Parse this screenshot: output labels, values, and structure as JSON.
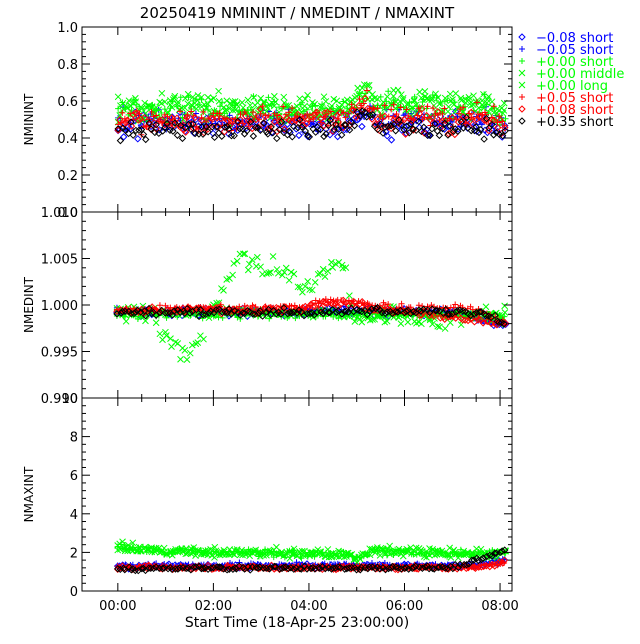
{
  "title": "20250419 NMININT / NMEDINT / NMAXINT",
  "colors": {
    "frame": "#000000",
    "black": "#000000",
    "blue": "#0000ff",
    "green": "#00ff00",
    "red": "#ff0000"
  },
  "legend": [
    {
      "symbol": "diamond",
      "color": "#0000ff",
      "text": "−0.08 short"
    },
    {
      "symbol": "plus",
      "color": "#0000ff",
      "text": "−0.05 short"
    },
    {
      "symbol": "plus",
      "color": "#00ff00",
      "text": "+0.00 short"
    },
    {
      "symbol": "cross",
      "color": "#00ff00",
      "text": "+0.00 middle"
    },
    {
      "symbol": "cross",
      "color": "#00ff00",
      "text": "+0.00 long"
    },
    {
      "symbol": "plus",
      "color": "#ff0000",
      "text": "+0.05 short"
    },
    {
      "symbol": "diamond",
      "color": "#ff0000",
      "text": "+0.08 short"
    },
    {
      "symbol": "diamond",
      "color": "#000000",
      "text": "+0.35 short"
    }
  ],
  "chart_data": [
    {
      "type": "scatter",
      "ylabel": "NMININT",
      "ylim": [
        0.0,
        1.0
      ],
      "yticks": [
        "0.0",
        "0.2",
        "0.4",
        "0.6",
        "0.8",
        "1.0"
      ],
      "xlim": [
        -0.75,
        8.25
      ],
      "series": [
        {
          "name": "−0.08 short",
          "symbol": "diamond",
          "color": "#0000ff",
          "profile": [
            [
              0,
              0.47
            ],
            [
              4.8,
              0.47
            ],
            [
              5.2,
              0.55
            ],
            [
              5.4,
              0.47
            ],
            [
              7.8,
              0.48
            ],
            [
              8.1,
              0.44
            ]
          ],
          "jitter": 0.03
        },
        {
          "name": "−0.05 short",
          "symbol": "plus",
          "color": "#0000ff",
          "profile": [
            [
              0,
              0.49
            ],
            [
              4.8,
              0.5
            ],
            [
              5.2,
              0.58
            ],
            [
              5.4,
              0.5
            ],
            [
              7.8,
              0.5
            ],
            [
              8.1,
              0.46
            ]
          ],
          "jitter": 0.03
        },
        {
          "name": "+0.00 short",
          "symbol": "plus",
          "color": "#00ff00",
          "profile": [
            [
              0,
              0.55
            ],
            [
              4.8,
              0.56
            ],
            [
              5.2,
              0.65
            ],
            [
              5.4,
              0.57
            ],
            [
              7.8,
              0.57
            ],
            [
              8.0,
              0.48
            ],
            [
              8.1,
              0.5
            ]
          ],
          "jitter": 0.035
        },
        {
          "name": "+0.00 middle",
          "symbol": "cross",
          "color": "#00ff00",
          "profile": [
            [
              0,
              0.56
            ],
            [
              4.8,
              0.56
            ],
            [
              5.2,
              0.67
            ],
            [
              5.4,
              0.58
            ],
            [
              7.8,
              0.58
            ],
            [
              8.1,
              0.52
            ]
          ],
          "jitter": 0.035
        },
        {
          "name": "+0.00 long",
          "symbol": "cross",
          "color": "#00ff00",
          "profile": [
            [
              0,
              0.57
            ],
            [
              4.8,
              0.57
            ],
            [
              5.2,
              0.68
            ],
            [
              5.4,
              0.6
            ],
            [
              7.8,
              0.6
            ],
            [
              8.1,
              0.54
            ]
          ],
          "jitter": 0.035
        },
        {
          "name": "+0.05 short",
          "symbol": "plus",
          "color": "#ff0000",
          "profile": [
            [
              0,
              0.5
            ],
            [
              4.8,
              0.51
            ],
            [
              5.2,
              0.6
            ],
            [
              5.4,
              0.52
            ],
            [
              7.8,
              0.52
            ],
            [
              8.1,
              0.47
            ]
          ],
          "jitter": 0.03
        },
        {
          "name": "+0.08 short",
          "symbol": "diamond",
          "color": "#ff0000",
          "profile": [
            [
              0,
              0.48
            ],
            [
              4.8,
              0.49
            ],
            [
              5.2,
              0.58
            ],
            [
              5.4,
              0.49
            ],
            [
              7.8,
              0.49
            ],
            [
              8.1,
              0.44
            ]
          ],
          "jitter": 0.03
        },
        {
          "name": "+0.35 short",
          "symbol": "diamond",
          "color": "#000000",
          "profile": [
            [
              0,
              0.44
            ],
            [
              4.8,
              0.45
            ],
            [
              5.2,
              0.53
            ],
            [
              5.4,
              0.46
            ],
            [
              7.8,
              0.45
            ],
            [
              8.1,
              0.41
            ]
          ],
          "jitter": 0.025
        }
      ]
    },
    {
      "type": "scatter",
      "ylabel": "NMEDINT",
      "ylim": [
        0.99,
        1.01
      ],
      "yticks": [
        "0.990",
        "0.995",
        "1.000",
        "1.005",
        "1.010"
      ],
      "xlim": [
        -0.75,
        8.25
      ],
      "series": [
        {
          "name": "−0.08 short",
          "symbol": "diamond",
          "color": "#0000ff",
          "profile": [
            [
              0,
              0.9992
            ],
            [
              5,
              0.9993
            ],
            [
              7,
              0.9992
            ],
            [
              8.1,
              0.9978
            ]
          ],
          "jitter": 0.0002
        },
        {
          "name": "−0.05 short",
          "symbol": "plus",
          "color": "#0000ff",
          "profile": [
            [
              0,
              0.9994
            ],
            [
              5,
              0.9994
            ],
            [
              7,
              0.9993
            ],
            [
              8.1,
              0.998
            ]
          ],
          "jitter": 0.0002
        },
        {
          "name": "+0.00 short",
          "symbol": "plus",
          "color": "#00ff00",
          "profile": [
            [
              0,
              0.999
            ],
            [
              8.1,
              0.9988
            ]
          ],
          "jitter": 0.0002
        },
        {
          "name": "+0.00 middle",
          "symbol": "cross",
          "color": "#00ff00",
          "profile": [
            [
              0,
              0.9992
            ],
            [
              0.8,
              0.9985
            ],
            [
              1.0,
              0.997
            ],
            [
              1.3,
              0.995
            ],
            [
              1.5,
              0.9948
            ],
            [
              1.8,
              0.997
            ],
            [
              2.0,
              0.9995
            ],
            [
              2.2,
              1.002
            ],
            [
              2.5,
              1.0045
            ],
            [
              3.0,
              1.005
            ],
            [
              3.3,
              1.004
            ],
            [
              3.6,
              1.0035
            ],
            [
              3.9,
              1.0015
            ],
            [
              4.2,
              1.003
            ],
            [
              4.5,
              1.0048
            ],
            [
              4.8,
              1.0035
            ],
            [
              4.9,
              0.998
            ],
            [
              5.2,
              0.9988
            ],
            [
              8.1,
              0.9985
            ]
          ],
          "jitter": 0.0006
        },
        {
          "name": "+0.00 long",
          "symbol": "cross",
          "color": "#00ff00",
          "profile": [
            [
              0,
              0.9992
            ],
            [
              8.1,
              0.999
            ]
          ],
          "jitter": 0.0002
        },
        {
          "name": "+0.05 short",
          "symbol": "plus",
          "color": "#ff0000",
          "profile": [
            [
              0,
              0.9995
            ],
            [
              3.8,
              0.9997
            ],
            [
              4.5,
              1.0005
            ],
            [
              5.0,
              1.0002
            ],
            [
              5.4,
              0.9998
            ],
            [
              7.5,
              0.9997
            ],
            [
              8.1,
              0.998
            ]
          ],
          "jitter": 0.0002
        },
        {
          "name": "+0.08 short",
          "symbol": "diamond",
          "color": "#ff0000",
          "profile": [
            [
              0,
              0.9994
            ],
            [
              3.8,
              0.9995
            ],
            [
              4.5,
              1.0002
            ],
            [
              5.0,
              1.0
            ],
            [
              5.4,
              0.9996
            ],
            [
              8.1,
              0.998
            ]
          ],
          "jitter": 0.0002
        },
        {
          "name": "+0.35 short",
          "symbol": "diamond",
          "color": "#000000",
          "profile": [
            [
              0,
              0.9992
            ],
            [
              5,
              0.9993
            ],
            [
              7.5,
              0.9992
            ],
            [
              8.1,
              0.9982
            ]
          ],
          "jitter": 0.0002
        }
      ]
    },
    {
      "type": "scatter",
      "ylabel": "NMAXINT",
      "ylim": [
        0,
        10
      ],
      "yticks": [
        "0",
        "2",
        "4",
        "6",
        "8",
        "10"
      ],
      "xlim": [
        -0.75,
        8.25
      ],
      "xticks": [
        "00:00",
        "02:00",
        "04:00",
        "06:00",
        "08:00"
      ],
      "xlabel": "Start Time (18-Apr-25 23:00:00)",
      "series": [
        {
          "name": "−0.08 short",
          "symbol": "diamond",
          "color": "#0000ff",
          "profile": [
            [
              0,
              1.25
            ],
            [
              7.5,
              1.3
            ],
            [
              8.1,
              1.6
            ]
          ],
          "jitter": 0.05
        },
        {
          "name": "−0.05 short",
          "symbol": "plus",
          "color": "#0000ff",
          "profile": [
            [
              0,
              1.3
            ],
            [
              3.5,
              1.35
            ],
            [
              7.5,
              1.3
            ],
            [
              8.1,
              1.7
            ]
          ],
          "jitter": 0.06
        },
        {
          "name": "+0.00 short",
          "symbol": "plus",
          "color": "#00ff00",
          "profile": [
            [
              0,
              2.3
            ],
            [
              1.0,
              2.05
            ],
            [
              4.8,
              1.9
            ],
            [
              5.0,
              1.6
            ],
            [
              5.3,
              2.1
            ],
            [
              7.8,
              1.95
            ],
            [
              8.1,
              2.0
            ]
          ],
          "jitter": 0.1
        },
        {
          "name": "+0.00 middle",
          "symbol": "cross",
          "color": "#00ff00",
          "profile": [
            [
              0,
              2.4
            ],
            [
              1.0,
              2.1
            ],
            [
              4.8,
              1.95
            ],
            [
              5.0,
              1.7
            ],
            [
              5.3,
              2.2
            ],
            [
              7.8,
              2.0
            ],
            [
              8.1,
              2.1
            ]
          ],
          "jitter": 0.1
        },
        {
          "name": "+0.00 long",
          "symbol": "cross",
          "color": "#00ff00",
          "profile": [
            [
              0,
              2.2
            ],
            [
              1.0,
              2.0
            ],
            [
              4.8,
              1.85
            ],
            [
              5.0,
              1.6
            ],
            [
              5.3,
              2.0
            ],
            [
              7.8,
              1.9
            ],
            [
              8.1,
              2.0
            ]
          ],
          "jitter": 0.1
        },
        {
          "name": "+0.05 short",
          "symbol": "plus",
          "color": "#ff0000",
          "profile": [
            [
              0,
              1.25
            ],
            [
              7.5,
              1.25
            ],
            [
              8.1,
              1.5
            ]
          ],
          "jitter": 0.05
        },
        {
          "name": "+0.08 short",
          "symbol": "diamond",
          "color": "#ff0000",
          "profile": [
            [
              0,
              1.2
            ],
            [
              7.5,
              1.2
            ],
            [
              8.1,
              1.5
            ]
          ],
          "jitter": 0.05
        },
        {
          "name": "+0.35 short",
          "symbol": "diamond",
          "color": "#000000",
          "profile": [
            [
              0,
              1.15
            ],
            [
              7.0,
              1.2
            ],
            [
              8.1,
              2.1
            ]
          ],
          "jitter": 0.05
        }
      ]
    }
  ]
}
